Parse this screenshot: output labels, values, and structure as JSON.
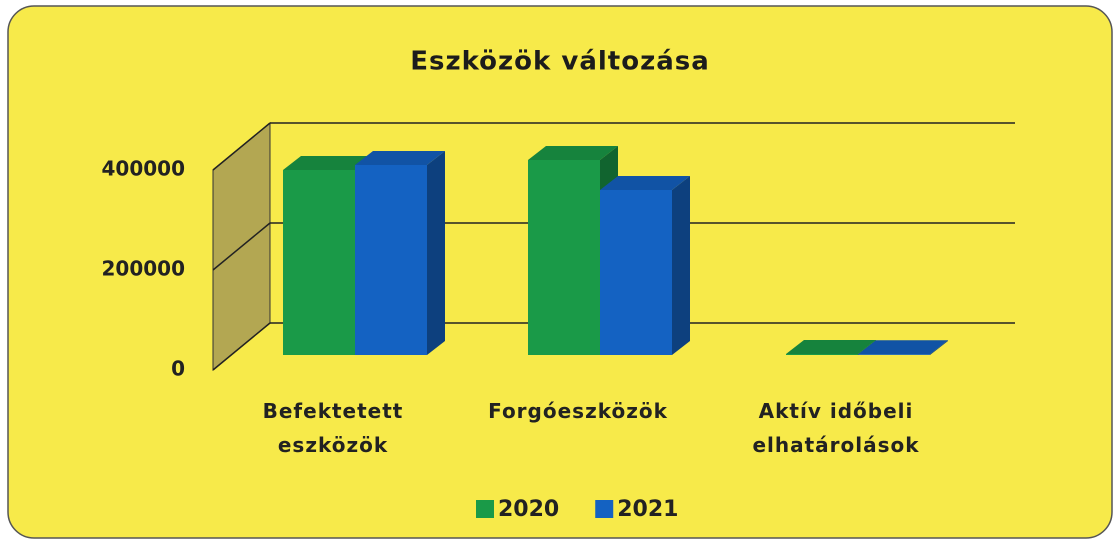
{
  "chart_data": {
    "type": "bar3d",
    "title": "Eszközök változása",
    "categories": [
      "Befektetett eszközök",
      "Forgóeszközök",
      "Aktív időbeli elhatárolások"
    ],
    "series": [
      {
        "name": "2020",
        "color": "#1a9a48",
        "values": [
          370000,
          390000,
          2000
        ]
      },
      {
        "name": "2021",
        "color": "#1462c2",
        "values": [
          380000,
          330000,
          1500
        ]
      }
    ],
    "ylim": [
      0,
      400000
    ],
    "yticks": [
      0,
      200000,
      400000
    ],
    "grid": true,
    "legend": "bottom"
  }
}
